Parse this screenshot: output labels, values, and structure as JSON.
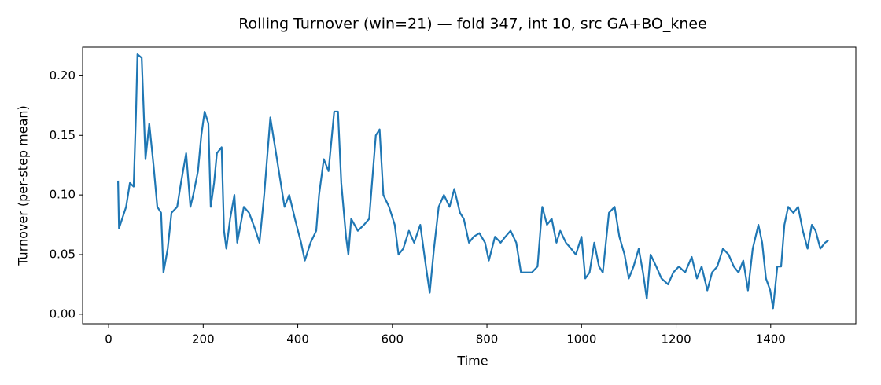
{
  "chart_data": {
    "type": "line",
    "title": "Rolling Turnover (win=21) — fold 347, int 10, src GA+BO_knee",
    "xlabel": "Time",
    "ylabel": "Turnover (per-step mean)",
    "color": "#1f77b4",
    "x": [
      20,
      22,
      37,
      45,
      53,
      58,
      61,
      70,
      78,
      86,
      95,
      103,
      111,
      116,
      125,
      133,
      145,
      153,
      164,
      173,
      179,
      189,
      196,
      203,
      211,
      216,
      223,
      229,
      239,
      244,
      249,
      257,
      266,
      272,
      286,
      297,
      311,
      319,
      329,
      342,
      352,
      362,
      372,
      382,
      394,
      407,
      415,
      427,
      439,
      445,
      455,
      465,
      477,
      485,
      492,
      502,
      507,
      513,
      527,
      540,
      551,
      565,
      573,
      581,
      593,
      605,
      613,
      623,
      635,
      646,
      659,
      671,
      679,
      688,
      698,
      709,
      721,
      731,
      743,
      751,
      762,
      772,
      784,
      796,
      804,
      817,
      829,
      839,
      850,
      862,
      872,
      884,
      895,
      907,
      917,
      927,
      937,
      947,
      955,
      967,
      978,
      988,
      1000,
      1008,
      1017,
      1027,
      1037,
      1045,
      1058,
      1070,
      1080,
      1091,
      1100,
      1110,
      1121,
      1130,
      1138,
      1146,
      1158,
      1169,
      1183,
      1194,
      1206,
      1219,
      1233,
      1244,
      1254,
      1266,
      1276,
      1287,
      1299,
      1311,
      1322,
      1332,
      1342,
      1352,
      1362,
      1374,
      1382,
      1390,
      1399,
      1405,
      1414,
      1422,
      1429,
      1437,
      1448,
      1458,
      1468,
      1478,
      1487,
      1495,
      1505,
      1515,
      1522
    ],
    "values": [
      0.112,
      0.072,
      0.09,
      0.11,
      0.107,
      0.17,
      0.218,
      0.215,
      0.13,
      0.16,
      0.125,
      0.09,
      0.085,
      0.035,
      0.055,
      0.085,
      0.09,
      0.11,
      0.135,
      0.09,
      0.1,
      0.12,
      0.15,
      0.17,
      0.16,
      0.09,
      0.11,
      0.135,
      0.14,
      0.07,
      0.055,
      0.08,
      0.1,
      0.06,
      0.09,
      0.085,
      0.07,
      0.06,
      0.1,
      0.165,
      0.14,
      0.115,
      0.09,
      0.1,
      0.08,
      0.06,
      0.045,
      0.06,
      0.07,
      0.1,
      0.13,
      0.12,
      0.17,
      0.17,
      0.11,
      0.065,
      0.05,
      0.08,
      0.07,
      0.075,
      0.08,
      0.15,
      0.155,
      0.1,
      0.09,
      0.075,
      0.05,
      0.055,
      0.07,
      0.06,
      0.075,
      0.04,
      0.018,
      0.055,
      0.09,
      0.1,
      0.09,
      0.105,
      0.085,
      0.08,
      0.06,
      0.065,
      0.068,
      0.06,
      0.045,
      0.065,
      0.06,
      0.065,
      0.07,
      0.06,
      0.035,
      0.035,
      0.035,
      0.04,
      0.09,
      0.075,
      0.08,
      0.06,
      0.07,
      0.06,
      0.055,
      0.05,
      0.065,
      0.03,
      0.035,
      0.06,
      0.04,
      0.035,
      0.085,
      0.09,
      0.065,
      0.05,
      0.03,
      0.04,
      0.055,
      0.035,
      0.013,
      0.05,
      0.04,
      0.03,
      0.025,
      0.035,
      0.04,
      0.035,
      0.048,
      0.03,
      0.04,
      0.02,
      0.035,
      0.04,
      0.055,
      0.05,
      0.04,
      0.035,
      0.045,
      0.02,
      0.055,
      0.075,
      0.06,
      0.03,
      0.02,
      0.005,
      0.04,
      0.04,
      0.075,
      0.09,
      0.085,
      0.09,
      0.07,
      0.055,
      0.075,
      0.07,
      0.055,
      0.06,
      0.062
    ],
    "xlim": [
      -55,
      1580
    ],
    "ylim": [
      -0.008,
      0.224
    ],
    "xticks": [
      0,
      200,
      400,
      600,
      800,
      1000,
      1200,
      1400
    ],
    "yticks": [
      {
        "value": 0,
        "label": "0.00"
      },
      0.05,
      {
        "value": 0.1,
        "label": "0.10"
      },
      0.15,
      {
        "value": 0.2,
        "label": "0.20"
      }
    ]
  }
}
